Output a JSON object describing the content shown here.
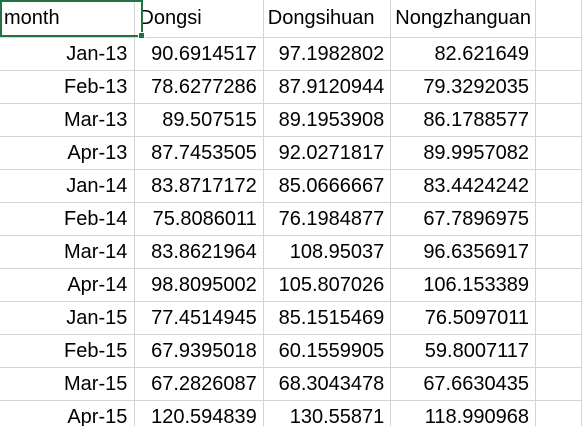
{
  "sheet": {
    "headers": [
      "month",
      "Dongsi",
      "Dongsihuan",
      "Nongzhanguan"
    ],
    "rows": [
      [
        "Jan-13",
        "90.6914517",
        "97.1982802",
        "82.621649"
      ],
      [
        "Feb-13",
        "78.6277286",
        "87.9120944",
        "79.3292035"
      ],
      [
        "Mar-13",
        "89.507515",
        "89.1953908",
        "86.1788577"
      ],
      [
        "Apr-13",
        "87.7453505",
        "92.0271817",
        "89.9957082"
      ],
      [
        "Jan-14",
        "83.8717172",
        "85.0666667",
        "83.4424242"
      ],
      [
        "Feb-14",
        "75.8086011",
        "76.1984877",
        "67.7896975"
      ],
      [
        "Mar-14",
        "83.8621964",
        "108.95037",
        "96.6356917"
      ],
      [
        "Apr-14",
        "98.8095002",
        "105.807026",
        "106.153389"
      ],
      [
        "Jan-15",
        "77.4514945",
        "85.1515469",
        "76.5097011"
      ],
      [
        "Feb-15",
        "67.9395018",
        "60.1559905",
        "59.8007117"
      ],
      [
        "Mar-15",
        "67.2826087",
        "68.3043478",
        "67.6630435"
      ],
      [
        "Apr-15",
        "120.594839",
        "130.55871",
        "118.990968"
      ]
    ],
    "selection_color": "#217346",
    "gridline_color": "#d4d4d4"
  }
}
